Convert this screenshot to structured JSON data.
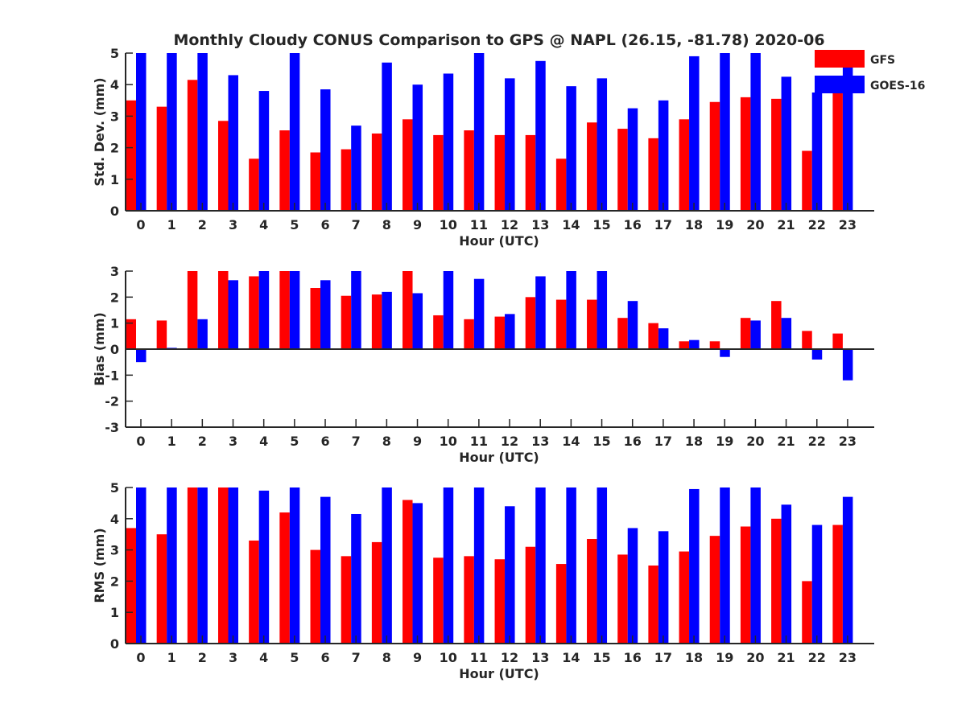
{
  "figure_title": "Monthly Cloudy CONUS Comparison to GPS @ NAPL (26.15, -81.78) 2020-06",
  "legend": [
    {
      "label": "GFS",
      "color": "#ff0000"
    },
    {
      "label": "GOES-16",
      "color": "#0000ff"
    }
  ],
  "chart_data": [
    {
      "type": "bar",
      "title": "Monthly Cloudy CONUS Comparison to GPS @ NAPL (26.15, -81.78) 2020-06",
      "xlabel": "Hour (UTC)",
      "ylabel": "Std. Dev. (mm)",
      "ylim": [
        0,
        5
      ],
      "yticks": [
        "0",
        "1",
        "2",
        "3",
        "4",
        "5"
      ],
      "categories": [
        "0",
        "1",
        "2",
        "3",
        "4",
        "5",
        "6",
        "7",
        "8",
        "9",
        "10",
        "11",
        "12",
        "13",
        "14",
        "15",
        "16",
        "17",
        "18",
        "19",
        "20",
        "21",
        "22",
        "23"
      ],
      "legend_position": "top-right",
      "series": [
        {
          "name": "GFS",
          "color": "#ff0000",
          "values": [
            3.5,
            3.3,
            4.15,
            2.85,
            1.65,
            2.55,
            1.85,
            1.95,
            2.45,
            2.9,
            2.4,
            2.55,
            2.4,
            2.4,
            1.65,
            2.8,
            2.6,
            2.3,
            2.9,
            3.45,
            3.6,
            3.55,
            1.9,
            3.8
          ]
        },
        {
          "name": "GOES-16",
          "color": "#0000ff",
          "values": [
            5,
            5,
            5,
            4.3,
            3.8,
            5,
            3.85,
            2.7,
            4.7,
            4.0,
            4.35,
            5,
            4.2,
            4.75,
            3.95,
            4.2,
            3.25,
            3.5,
            4.9,
            5,
            5,
            4.25,
            3.75,
            4.6
          ]
        }
      ]
    },
    {
      "type": "bar",
      "title": "",
      "xlabel": "Hour (UTC)",
      "ylabel": "Bias (mm)",
      "ylim": [
        -3,
        3
      ],
      "yticks": [
        "-3",
        "-2",
        "-1",
        "0",
        "1",
        "2",
        "3"
      ],
      "categories": [
        "0",
        "1",
        "2",
        "3",
        "4",
        "5",
        "6",
        "7",
        "8",
        "9",
        "10",
        "11",
        "12",
        "13",
        "14",
        "15",
        "16",
        "17",
        "18",
        "19",
        "20",
        "21",
        "22",
        "23"
      ],
      "series": [
        {
          "name": "GFS",
          "color": "#ff0000",
          "values": [
            1.15,
            1.1,
            3,
            3,
            2.8,
            3,
            2.35,
            2.05,
            2.1,
            3,
            1.3,
            1.15,
            1.25,
            2.0,
            1.9,
            1.9,
            1.2,
            1.0,
            0.3,
            0.3,
            1.2,
            1.85,
            0.7,
            0.6
          ]
        },
        {
          "name": "GOES-16",
          "color": "#0000ff",
          "values": [
            -0.5,
            0.05,
            1.15,
            2.65,
            3,
            3,
            2.65,
            3,
            2.2,
            2.15,
            3,
            2.7,
            1.35,
            2.8,
            3,
            3,
            1.85,
            0.8,
            0.35,
            -0.3,
            1.1,
            1.2,
            -0.4,
            -1.2
          ]
        }
      ]
    },
    {
      "type": "bar",
      "title": "",
      "xlabel": "Hour (UTC)",
      "ylabel": "RMS (mm)",
      "ylim": [
        0,
        5
      ],
      "yticks": [
        "0",
        "1",
        "2",
        "3",
        "4",
        "5"
      ],
      "categories": [
        "0",
        "1",
        "2",
        "3",
        "4",
        "5",
        "6",
        "7",
        "8",
        "9",
        "10",
        "11",
        "12",
        "13",
        "14",
        "15",
        "16",
        "17",
        "18",
        "19",
        "20",
        "21",
        "22",
        "23"
      ],
      "series": [
        {
          "name": "GFS",
          "color": "#ff0000",
          "values": [
            3.7,
            3.5,
            5,
            5,
            3.3,
            4.2,
            3.0,
            2.8,
            3.25,
            4.6,
            2.75,
            2.8,
            2.7,
            3.1,
            2.55,
            3.35,
            2.85,
            2.5,
            2.95,
            3.45,
            3.75,
            4.0,
            2.0,
            3.8
          ]
        },
        {
          "name": "GOES-16",
          "color": "#0000ff",
          "values": [
            5,
            5,
            5,
            5,
            4.9,
            5,
            4.7,
            4.15,
            5,
            4.5,
            5,
            5,
            4.4,
            5,
            5,
            5,
            3.7,
            3.6,
            4.95,
            5,
            5,
            4.45,
            3.8,
            4.7
          ]
        }
      ]
    }
  ]
}
